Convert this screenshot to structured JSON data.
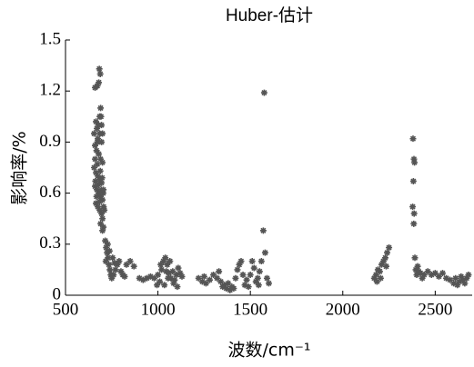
{
  "chart_data": {
    "type": "scatter",
    "title": "Huber-估计",
    "xlabel": "波数/cm⁻¹",
    "ylabel": "影响率/%",
    "color": "#555555",
    "xlim": [
      500,
      2700
    ],
    "ylim": [
      0,
      1.5
    ],
    "xticks": [
      500,
      1000,
      1500,
      2000,
      2500
    ],
    "yticks": [
      0,
      0.3,
      0.6,
      0.9,
      1.2,
      1.5
    ],
    "x": [
      660,
      672,
      683,
      688,
      680,
      690,
      685,
      665,
      670,
      655,
      675,
      695,
      660,
      668,
      680,
      690,
      700,
      655,
      665,
      675,
      685,
      695,
      660,
      670,
      680,
      690,
      700,
      665,
      675,
      685,
      695,
      700,
      690,
      705,
      695,
      700,
      660,
      672,
      688,
      698,
      662,
      678,
      694,
      704,
      668,
      684,
      706,
      710,
      700,
      705,
      672,
      685,
      692,
      678,
      715,
      720,
      725,
      730,
      718,
      735,
      740,
      745,
      750,
      760,
      770,
      780,
      790,
      800,
      810,
      820,
      830,
      850,
      870,
      728,
      738,
      755,
      765,
      900,
      920,
      940,
      960,
      980,
      1000,
      1010,
      1020,
      1030,
      1040,
      1050,
      1060,
      1070,
      1080,
      1090,
      1100,
      1110,
      1120,
      1130,
      1015,
      1035,
      1055,
      1065,
      1085,
      1105,
      995,
      1045,
      1220,
      1240,
      1260,
      1280,
      1300,
      1320,
      1340,
      1350,
      1360,
      1370,
      1380,
      1390,
      1400,
      1420,
      1430,
      1440,
      1450,
      1460,
      1470,
      1480,
      1500,
      1510,
      1520,
      1530,
      1540,
      1550,
      1560,
      1570,
      1575,
      1580,
      1590,
      1600,
      1250,
      1330,
      1410,
      1490,
      1545,
      2170,
      2180,
      2190,
      2200,
      2210,
      2220,
      2230,
      2240,
      2250,
      2185,
      2205,
      2235,
      2380,
      2385,
      2388,
      2382,
      2378,
      2386,
      2384,
      2390,
      2395,
      2400,
      2410,
      2420,
      2440,
      2460,
      2480,
      2500,
      2520,
      2540,
      2560,
      2580,
      2600,
      2610,
      2620,
      2630,
      2640,
      2650,
      2660,
      2670,
      2680,
      2405,
      2430
    ],
    "values": [
      1.22,
      1.23,
      1.33,
      1.3,
      1.25,
      1.1,
      1.05,
      1.02,
      0.98,
      0.95,
      0.92,
      0.9,
      0.88,
      0.85,
      0.83,
      0.8,
      0.78,
      0.75,
      0.72,
      0.7,
      0.68,
      0.66,
      0.64,
      0.62,
      0.6,
      0.58,
      0.56,
      0.54,
      0.52,
      0.5,
      0.48,
      0.45,
      0.42,
      0.4,
      1.0,
      0.95,
      0.8,
      0.77,
      0.73,
      0.69,
      0.67,
      0.65,
      0.62,
      0.6,
      0.58,
      0.55,
      0.52,
      0.5,
      0.38,
      0.62,
      0.9,
      0.95,
      1.05,
      1.0,
      0.32,
      0.28,
      0.25,
      0.22,
      0.2,
      0.18,
      0.15,
      0.12,
      0.1,
      0.12,
      0.15,
      0.18,
      0.2,
      0.14,
      0.12,
      0.11,
      0.18,
      0.2,
      0.17,
      0.3,
      0.26,
      0.22,
      0.19,
      0.1,
      0.09,
      0.1,
      0.11,
      0.1,
      0.12,
      0.08,
      0.15,
      0.2,
      0.22,
      0.18,
      0.13,
      0.1,
      0.14,
      0.09,
      0.12,
      0.16,
      0.13,
      0.11,
      0.18,
      0.06,
      0.1,
      0.2,
      0.07,
      0.05,
      0.06,
      0.14,
      0.1,
      0.08,
      0.07,
      0.09,
      0.12,
      0.1,
      0.08,
      0.05,
      0.06,
      0.04,
      0.07,
      0.03,
      0.05,
      0.1,
      0.15,
      0.18,
      0.2,
      0.12,
      0.06,
      0.09,
      0.12,
      0.2,
      0.16,
      0.08,
      0.1,
      0.14,
      0.2,
      0.38,
      1.19,
      0.25,
      0.1,
      0.07,
      0.11,
      0.14,
      0.04,
      0.05,
      0.06,
      0.1,
      0.12,
      0.15,
      0.14,
      0.18,
      0.2,
      0.22,
      0.25,
      0.28,
      0.08,
      0.1,
      0.17,
      0.92,
      0.8,
      0.78,
      0.67,
      0.52,
      0.48,
      0.42,
      0.22,
      0.15,
      0.12,
      0.14,
      0.13,
      0.12,
      0.14,
      0.12,
      0.13,
      0.11,
      0.13,
      0.1,
      0.09,
      0.07,
      0.1,
      0.06,
      0.08,
      0.11,
      0.09,
      0.07,
      0.1,
      0.12,
      0.17,
      0.1
    ]
  }
}
